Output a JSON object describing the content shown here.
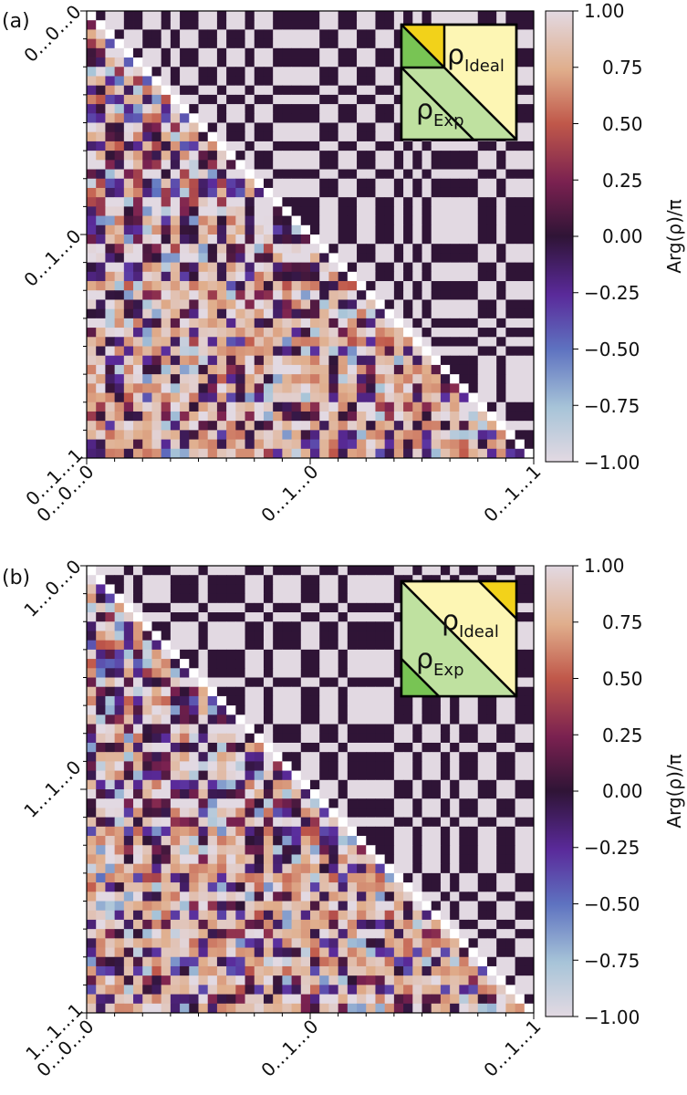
{
  "chart_data": [
    {
      "type": "heatmap",
      "panel_label": "(a)",
      "grid_size": 48,
      "heatmap_seed": 1,
      "y_tick_labels": [
        "0…0…0",
        "0…1…0",
        "0…1…1"
      ],
      "x_tick_labels": [
        "0…0…0",
        "0…1…0",
        "0…1…1"
      ],
      "colorbar": {
        "label": "Arg(ρ)/π",
        "range": [
          -1.0,
          1.0
        ],
        "ticks": [
          "1.00",
          "0.75",
          "0.50",
          "0.25",
          "0.00",
          "−0.25",
          "−0.50",
          "−0.75",
          "−1.00"
        ],
        "colormap": "twilight_shifted"
      },
      "inset": {
        "ideal_label": "ρ",
        "ideal_subscript": "Ideal",
        "exp_label": "ρ",
        "exp_subscript": "Exp",
        "highlight": "top-left",
        "colors": {
          "ideal": "#fdf6b4",
          "exp": "#bfe1a0",
          "highlight_ideal": "#f2d21a",
          "highlight_exp": "#78c454"
        }
      },
      "upper_triangle": "Ideal",
      "lower_triangle": "Exp"
    },
    {
      "type": "heatmap",
      "panel_label": "(b)",
      "grid_size": 48,
      "heatmap_seed": 7,
      "y_tick_labels": [
        "1…0…0",
        "1…1…0",
        "1…1…1"
      ],
      "x_tick_labels": [
        "0…0…0",
        "0…1…0",
        "0…1…1"
      ],
      "colorbar": {
        "label": "Arg(ρ)/π",
        "range": [
          -1.0,
          1.0
        ],
        "ticks": [
          "1.00",
          "0.75",
          "0.50",
          "0.25",
          "0.00",
          "−0.25",
          "−0.50",
          "−0.75",
          "−1.00"
        ],
        "colormap": "twilight_shifted"
      },
      "inset": {
        "ideal_label": "ρ",
        "ideal_subscript": "Ideal",
        "exp_label": "ρ",
        "exp_subscript": "Exp",
        "highlight": "top-right",
        "colors": {
          "ideal": "#fdf6b4",
          "exp": "#bfe1a0",
          "highlight_ideal": "#f2d21a",
          "highlight_exp": "#78c454"
        }
      },
      "upper_triangle": "Ideal",
      "lower_triangle": "Exp"
    }
  ]
}
